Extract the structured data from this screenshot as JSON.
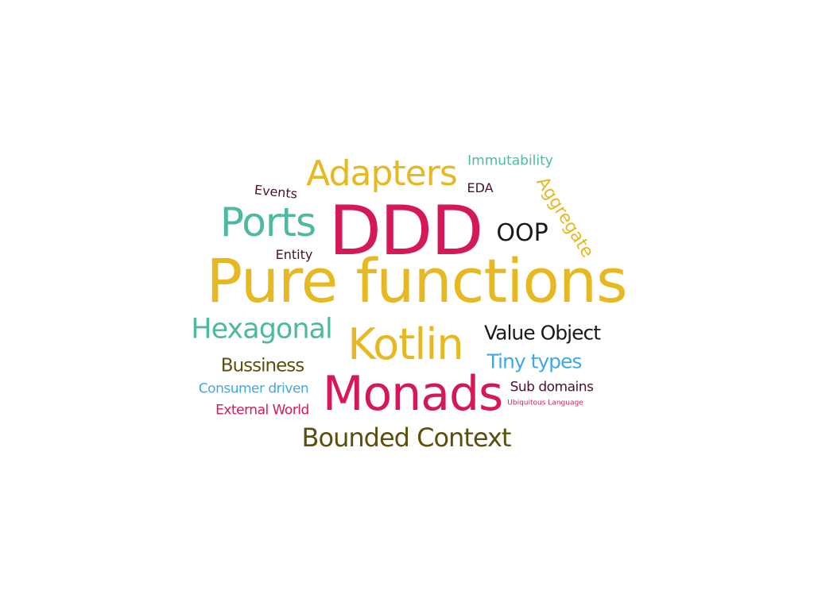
{
  "words": {
    "pure_functions": {
      "text": "Pure functions",
      "color": "#e6b822"
    },
    "ddd": {
      "text": "DDD",
      "color": "#d4185a"
    },
    "monads": {
      "text": "Monads",
      "color": "#d4185a"
    },
    "kotlin": {
      "text": "Kotlin",
      "color": "#e6b822"
    },
    "adapters": {
      "text": "Adapters",
      "color": "#e6b822"
    },
    "ports": {
      "text": "Ports",
      "color": "#4fb8a0"
    },
    "hexagonal": {
      "text": "Hexagonal",
      "color": "#4fb8a0"
    },
    "bounded_context": {
      "text": "Bounded Context",
      "color": "#5c4f0e"
    },
    "oop": {
      "text": "OOP",
      "color": "#1a1a1a"
    },
    "value_object": {
      "text": "Value Object",
      "color": "#1a1a1a"
    },
    "tiny_types": {
      "text": "Tiny types",
      "color": "#3fa9e6"
    },
    "bussiness": {
      "text": "Bussiness",
      "color": "#5c4f0e"
    },
    "aggregate": {
      "text": "Aggregate",
      "color": "#e6b822"
    },
    "immutability": {
      "text": "Immutability",
      "color": "#4fb8a0"
    },
    "consumer_driven": {
      "text": "Consumer driven",
      "color": "#3fa9e6"
    },
    "external_world": {
      "text": "External World",
      "color": "#d4185a"
    },
    "sub_domains": {
      "text": "Sub domains",
      "color": "#4a1030"
    },
    "events": {
      "text": "Events",
      "color": "#4a1030"
    },
    "entity": {
      "text": "Entity",
      "color": "#4a1030"
    },
    "eda": {
      "text": "EDA",
      "color": "#4a1030"
    },
    "ubiquitous_language": {
      "text": "Ubiquitous Language",
      "color": "#d4185a"
    }
  }
}
